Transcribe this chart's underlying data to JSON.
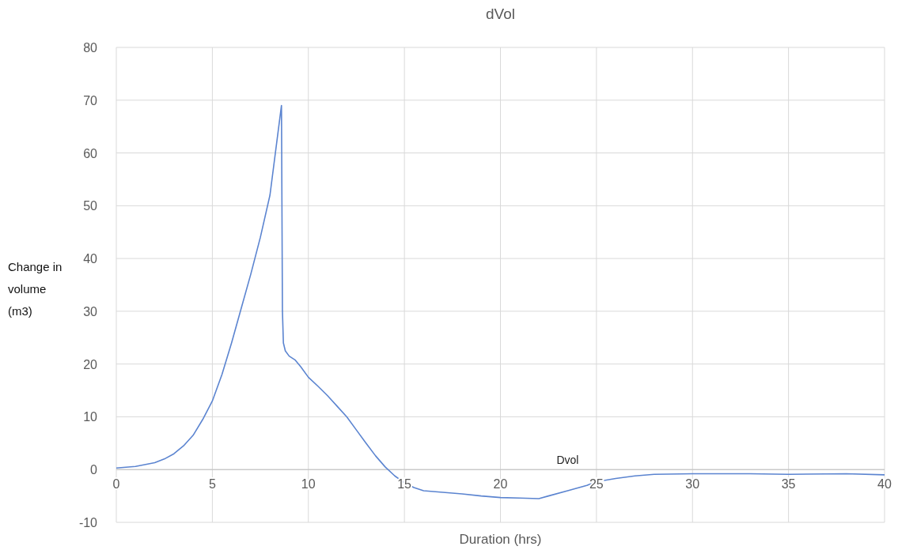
{
  "chart_data": {
    "type": "line",
    "title": "dVol",
    "xlabel": "Duration (hrs)",
    "ylabel": "Change in volume (m3)",
    "xlim": [
      0,
      40
    ],
    "xticks": [
      0,
      5,
      10,
      15,
      20,
      25,
      30,
      35,
      40
    ],
    "ylim": [
      -10,
      80
    ],
    "yticks": [
      -10,
      0,
      10,
      20,
      30,
      40,
      50,
      60,
      70,
      80
    ],
    "grid": true,
    "marker": "none",
    "line_style": "solid",
    "series": [
      {
        "name": "Dvol",
        "color": "#5b84d0",
        "x": [
          0,
          1,
          2,
          2.5,
          3,
          3.5,
          4,
          4.5,
          5,
          5.5,
          6,
          6.5,
          7,
          7.5,
          8,
          8.6,
          8.65,
          8.7,
          8.8,
          9,
          9.3,
          9.6,
          10,
          10.5,
          11,
          11.5,
          12,
          12.5,
          13,
          13.5,
          14,
          14.5,
          15,
          15.5,
          16,
          17,
          18,
          19,
          20,
          21,
          22,
          22.5,
          23.5,
          24.5,
          25,
          26,
          27,
          28,
          30,
          33,
          35,
          38,
          40
        ],
        "values": [
          0.3,
          0.6,
          1.3,
          2,
          3,
          4.5,
          6.5,
          9.5,
          13,
          18,
          24,
          30.5,
          37,
          44,
          52,
          69,
          30,
          24,
          22.5,
          21.5,
          20.8,
          19.5,
          17.5,
          15.8,
          14,
          12,
          10,
          7.5,
          5,
          2.6,
          0.5,
          -1.2,
          -2.5,
          -3.4,
          -4,
          -4.3,
          -4.6,
          -5,
          -5.3,
          -5.4,
          -5.5,
          -5,
          -4,
          -3,
          -2.3,
          -1.7,
          -1.2,
          -0.9,
          -0.8,
          -0.8,
          -0.9,
          -0.8,
          -1
        ]
      }
    ]
  }
}
